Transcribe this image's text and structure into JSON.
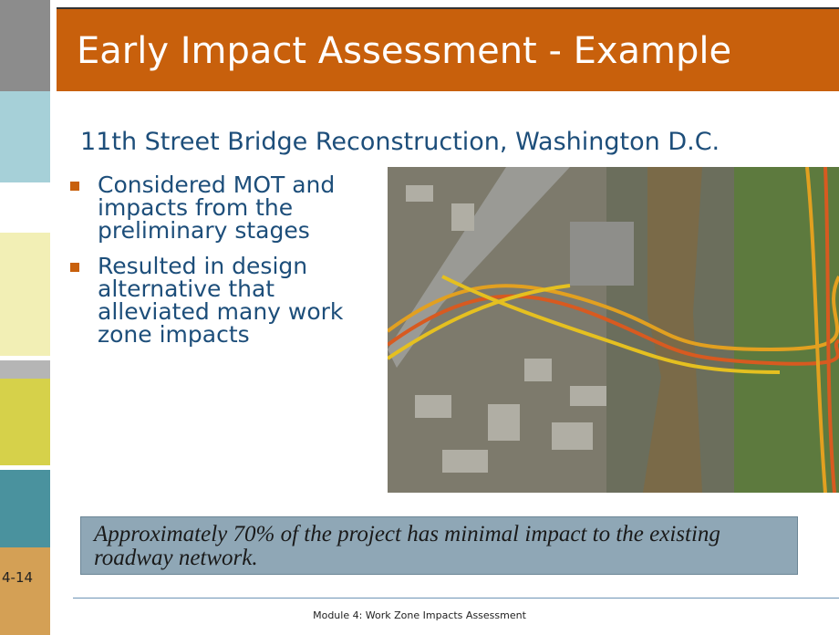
{
  "header": {
    "title": "Early Impact Assessment - Example",
    "subtitle": "11th Street Bridge Reconstruction, Washington D.C."
  },
  "bullets": [
    "Considered MOT and impacts from the preliminary stages",
    "Resulted in design alternative that alleviated many work zone impacts"
  ],
  "callout": "Approximately 70% of the project has minimal impact to the existing roadway network.",
  "slide_number": "4-14",
  "footer": "Module 4: Work Zone Impacts Assessment"
}
